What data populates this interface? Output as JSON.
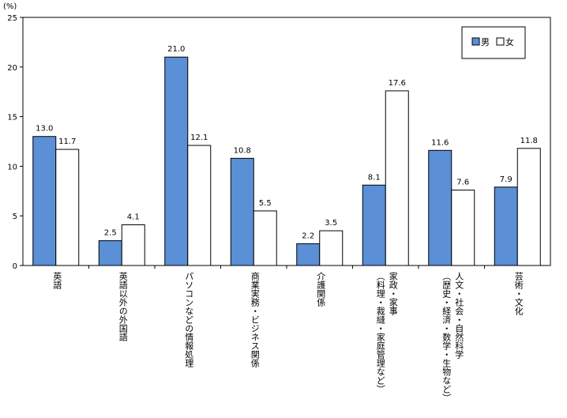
{
  "chart_data": {
    "type": "bar",
    "unit_label": "(%)",
    "categories": [
      "英語",
      "英語以外の外国語",
      "パソコンなどの情報処理",
      "商業実務・ビジネス関係",
      "介護関係",
      "家政・家事\n（料理・裁縫・家庭管理など）",
      "人文・社会・自然科学\n（歴史・経済・数学・生物など）",
      "芸術・文化"
    ],
    "series": [
      {
        "name": "男",
        "color": "#5b8fd6",
        "values": [
          13.0,
          2.5,
          21.0,
          10.8,
          2.2,
          8.1,
          11.6,
          7.9
        ]
      },
      {
        "name": "女",
        "color": "#ffffff",
        "values": [
          11.7,
          4.1,
          12.1,
          5.5,
          3.5,
          17.6,
          7.6,
          11.8
        ]
      }
    ],
    "ylim": [
      0,
      25
    ],
    "yticks": [
      0,
      5,
      10,
      15,
      20,
      25
    ],
    "legend_position": "top-right",
    "grid": false
  }
}
